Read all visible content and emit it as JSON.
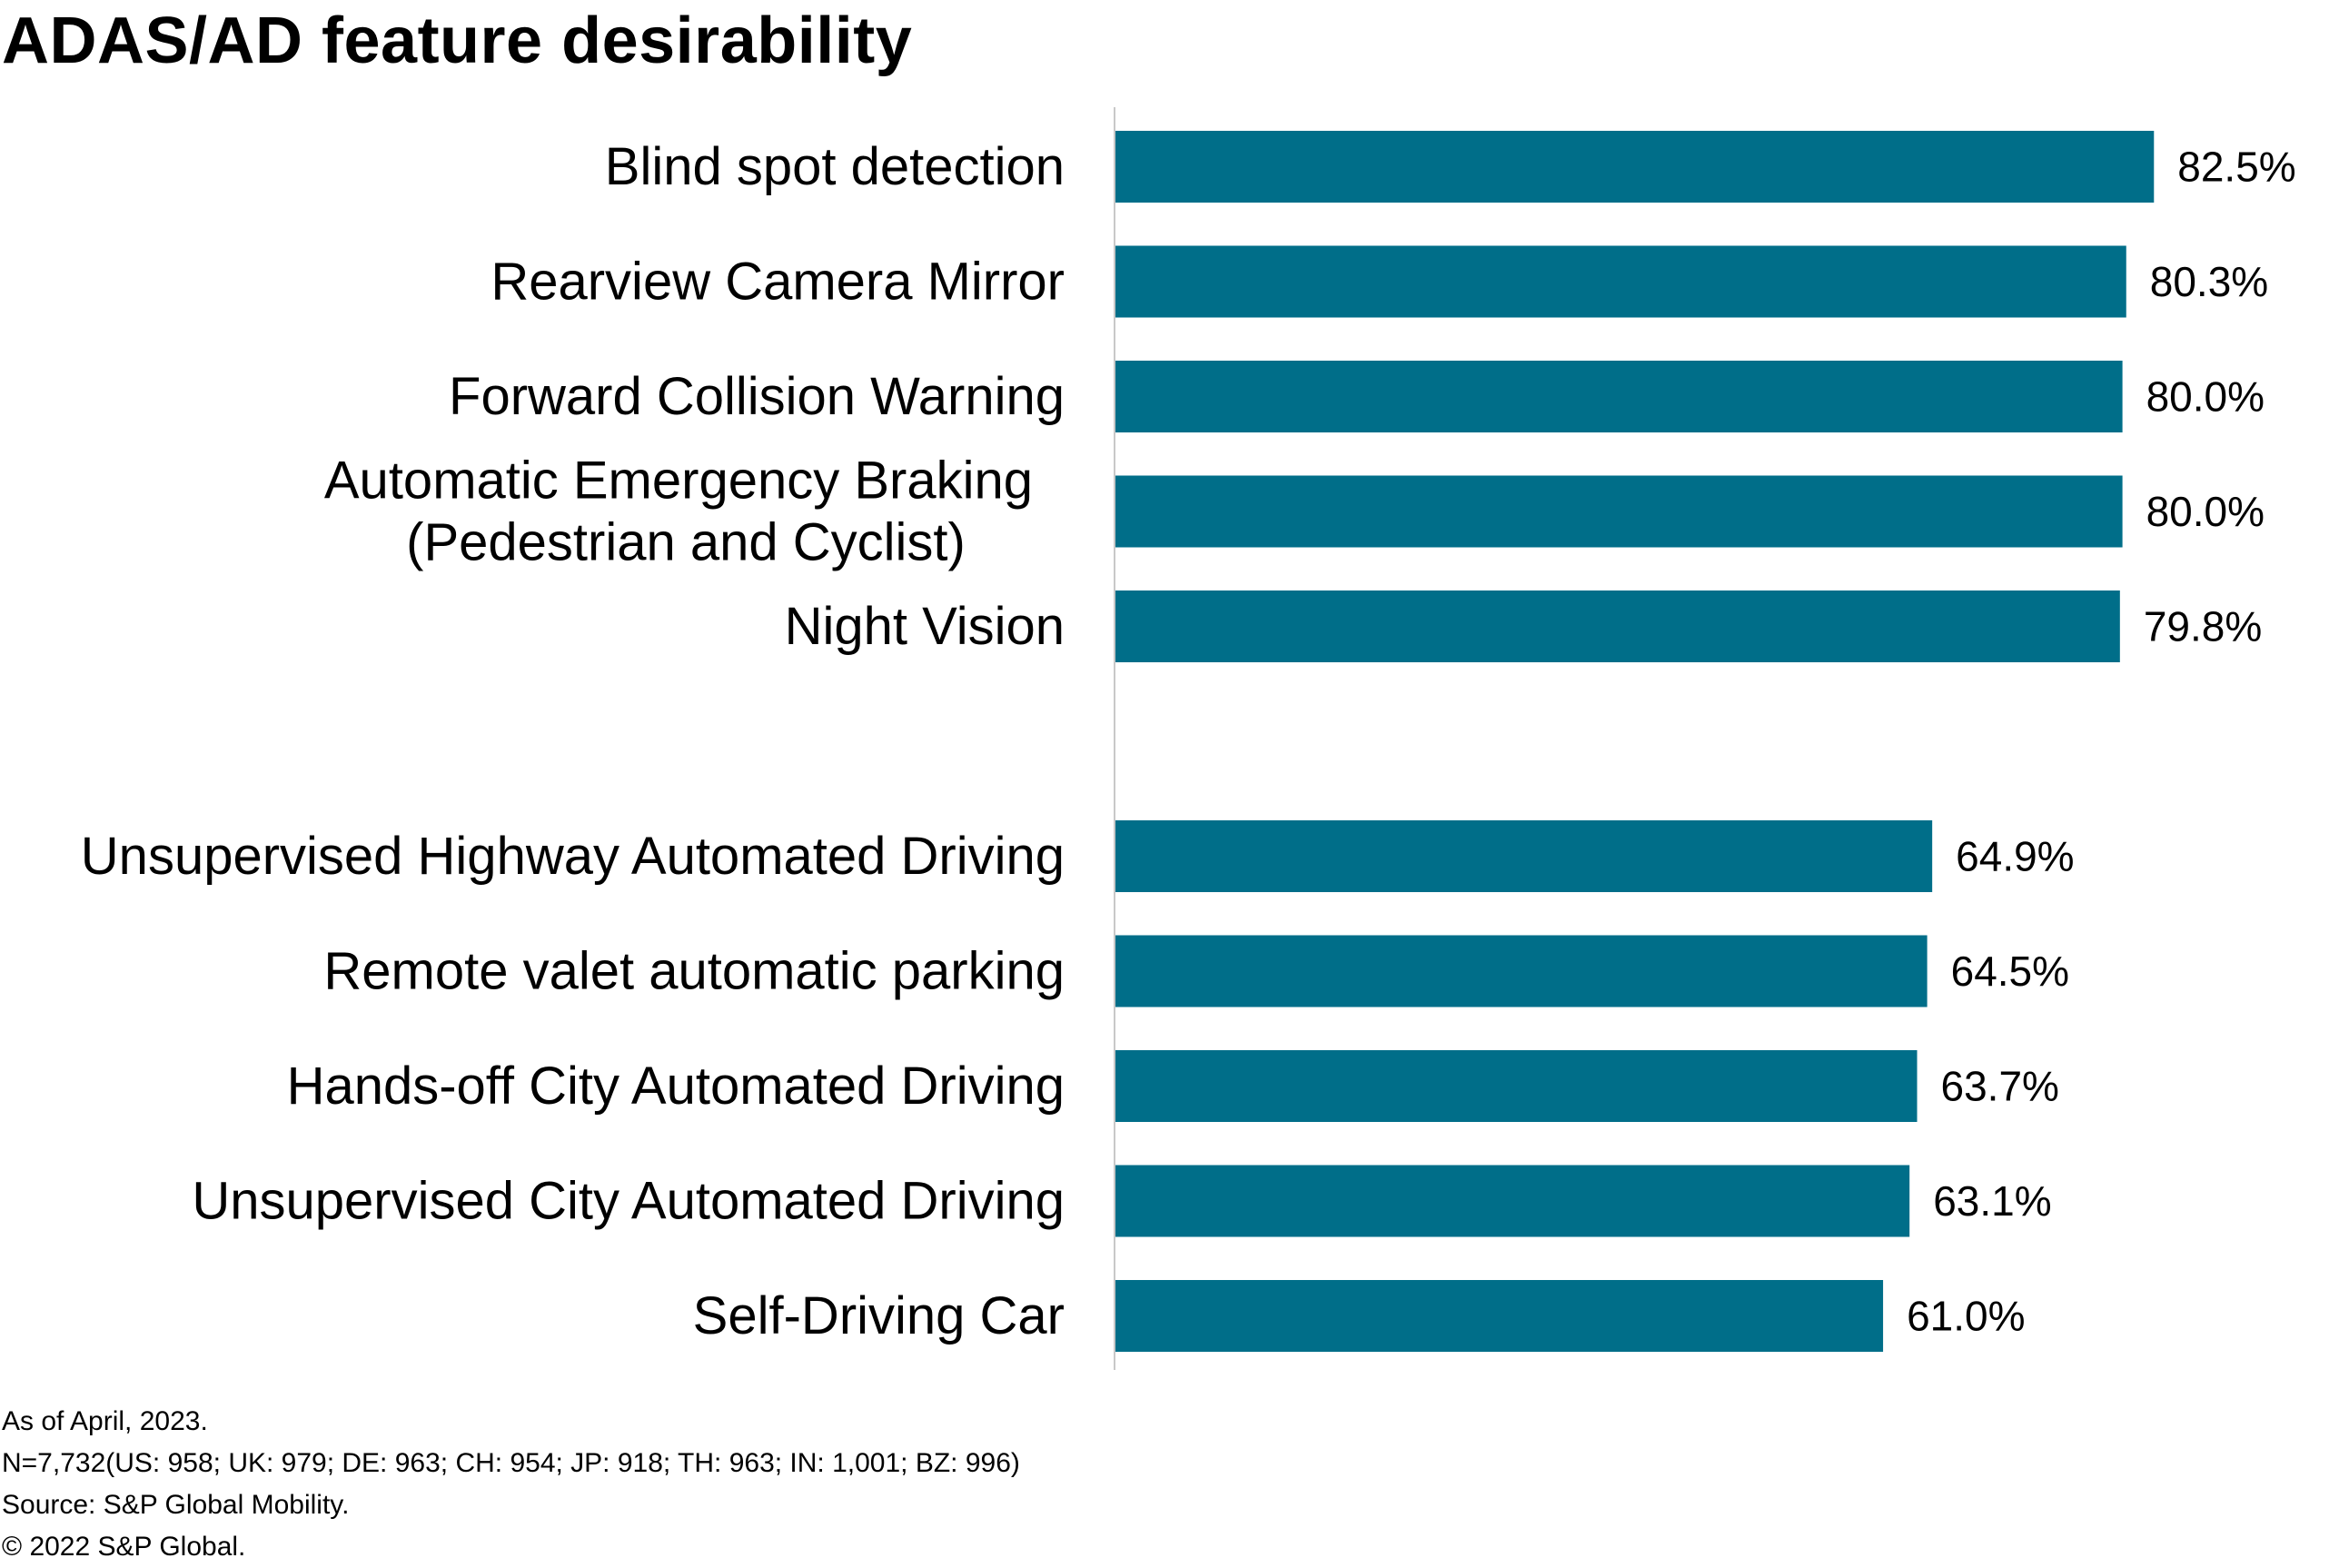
{
  "chart_data": {
    "type": "bar",
    "orientation": "horizontal",
    "title": "ADAS/AD feature desirability",
    "categories": [
      [
        "Blind spot detection"
      ],
      [
        "Rearview Camera Mirror"
      ],
      [
        "Forward Collision Warning"
      ],
      [
        "Automatic Emergency Braking ",
        "(Pedestrian and Cyclist)"
      ],
      [
        "Night Vision"
      ],
      [
        "Unsupervised Highway Automated Driving"
      ],
      [
        "Remote valet automatic parking"
      ],
      [
        "Hands-off City Automated Driving"
      ],
      [
        "Unsupervised City Automated Driving"
      ],
      [
        "Self-Driving Car"
      ]
    ],
    "values": [
      82.5,
      80.3,
      80.0,
      80.0,
      79.8,
      64.9,
      64.5,
      63.7,
      63.1,
      61.0
    ],
    "value_labels": [
      "82.5%",
      "80.3%",
      "80.0%",
      "80.0%",
      "79.8%",
      "64.9%",
      "64.5%",
      "63.7%",
      "63.1%",
      "61.0%"
    ],
    "groups": [
      [
        0,
        1,
        2,
        3,
        4
      ],
      [
        5,
        6,
        7,
        8,
        9
      ]
    ],
    "xlim": [
      0,
      100
    ],
    "bar_color": "#006e89",
    "axis_color": "#c8c8c8",
    "grid": false,
    "legend": "none"
  },
  "footnotes": [
    "As of April, 2023.",
    "N=7,732(US: 958; UK: 979; DE: 963; CH: 954; JP: 918; TH: 963; IN: 1,001; BZ: 996)",
    "Source: S&P Global Mobility.",
    "© 2022 S&P Global."
  ]
}
